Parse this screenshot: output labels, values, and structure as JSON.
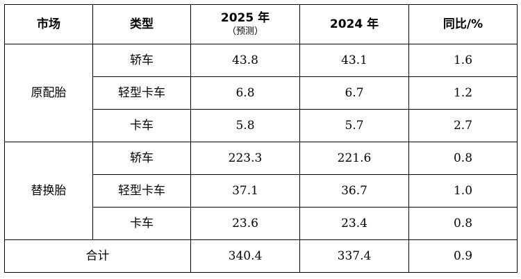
{
  "table": {
    "headers": {
      "market": "市场",
      "type": "类型",
      "year2025": "2025 年",
      "year2025_note": "（预测）",
      "year2024": "2024 年",
      "yoy": "同比/%"
    },
    "groups": [
      {
        "market": "原配胎",
        "rows": [
          {
            "type": "轿车",
            "v2025": "43.8",
            "v2024": "43.1",
            "yoy": "1.6"
          },
          {
            "type": "轻型卡车",
            "v2025": "6.8",
            "v2024": "6.7",
            "yoy": "1.2"
          },
          {
            "type": "卡车",
            "v2025": "5.8",
            "v2024": "5.7",
            "yoy": "2.7"
          }
        ]
      },
      {
        "market": "替换胎",
        "rows": [
          {
            "type": "轿车",
            "v2025": "223.3",
            "v2024": "221.6",
            "yoy": "0.8"
          },
          {
            "type": "轻型卡车",
            "v2025": "37.1",
            "v2024": "36.7",
            "yoy": "1.0"
          },
          {
            "type": "卡车",
            "v2025": "23.6",
            "v2024": "23.4",
            "yoy": "0.8"
          }
        ]
      }
    ],
    "total": {
      "label": "合计",
      "v2025": "340.4",
      "v2024": "337.4",
      "yoy": "0.9"
    }
  }
}
